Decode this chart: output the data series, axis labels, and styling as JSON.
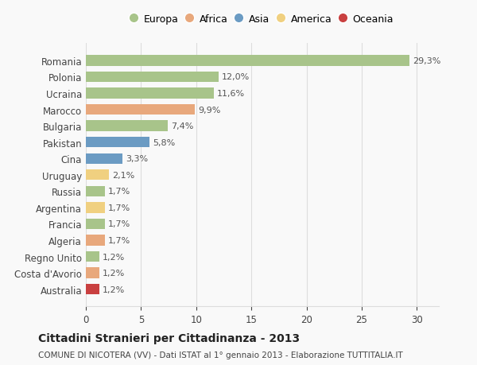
{
  "countries": [
    "Romania",
    "Polonia",
    "Ucraina",
    "Marocco",
    "Bulgaria",
    "Pakistan",
    "Cina",
    "Uruguay",
    "Russia",
    "Argentina",
    "Francia",
    "Algeria",
    "Regno Unito",
    "Costa d'Avorio",
    "Australia"
  ],
  "values": [
    29.3,
    12.0,
    11.6,
    9.9,
    7.4,
    5.8,
    3.3,
    2.1,
    1.7,
    1.7,
    1.7,
    1.7,
    1.2,
    1.2,
    1.2
  ],
  "labels": [
    "29,3%",
    "12,0%",
    "11,6%",
    "9,9%",
    "7,4%",
    "5,8%",
    "3,3%",
    "2,1%",
    "1,7%",
    "1,7%",
    "1,7%",
    "1,7%",
    "1,2%",
    "1,2%",
    "1,2%"
  ],
  "colors": [
    "#a8c48a",
    "#a8c48a",
    "#a8c48a",
    "#e8a87c",
    "#a8c48a",
    "#6b9bc3",
    "#6b9bc3",
    "#f0d080",
    "#a8c48a",
    "#f0d080",
    "#a8c48a",
    "#e8a87c",
    "#a8c48a",
    "#e8a87c",
    "#c94040"
  ],
  "legend_labels": [
    "Europa",
    "Africa",
    "Asia",
    "America",
    "Oceania"
  ],
  "legend_colors": [
    "#a8c48a",
    "#e8a87c",
    "#6b9bc3",
    "#f0d080",
    "#c94040"
  ],
  "title": "Cittadini Stranieri per Cittadinanza - 2013",
  "subtitle": "COMUNE DI NICOTERA (VV) - Dati ISTAT al 1° gennaio 2013 - Elaborazione TUTTITALIA.IT",
  "xlim": [
    0,
    32
  ],
  "xticks": [
    0,
    5,
    10,
    15,
    20,
    25,
    30
  ],
  "bg_color": "#f9f9f9",
  "grid_color": "#dddddd",
  "bar_height": 0.65
}
